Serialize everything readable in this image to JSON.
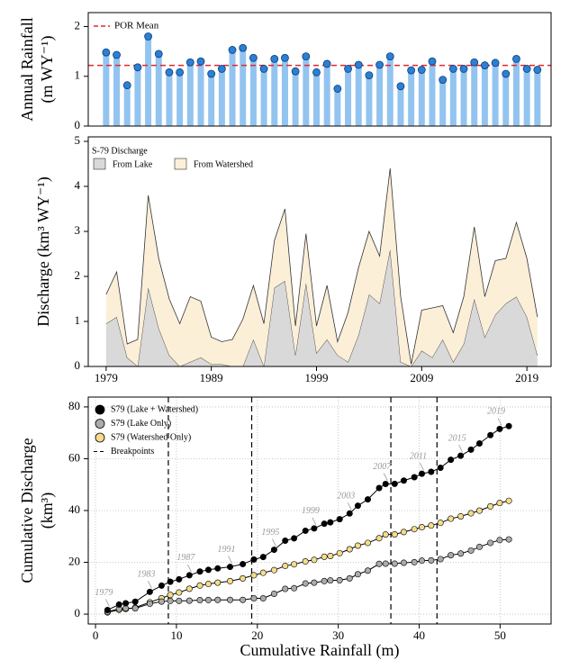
{
  "chart_data": [
    {
      "type": "bar",
      "ylabel": [
        "Annual Rainfall",
        "(m WY⁻¹)"
      ],
      "x": [
        1979,
        1980,
        1981,
        1982,
        1983,
        1984,
        1985,
        1986,
        1987,
        1988,
        1989,
        1990,
        1991,
        1992,
        1993,
        1994,
        1995,
        1996,
        1997,
        1998,
        1999,
        2000,
        2001,
        2002,
        2003,
        2004,
        2005,
        2006,
        2007,
        2008,
        2009,
        2010,
        2011,
        2012,
        2013,
        2014,
        2015,
        2016,
        2017,
        2018,
        2019,
        2020
      ],
      "values": [
        1.48,
        1.43,
        0.82,
        1.18,
        1.8,
        1.45,
        1.08,
        1.08,
        1.28,
        1.3,
        1.05,
        1.15,
        1.53,
        1.57,
        1.37,
        1.15,
        1.35,
        1.37,
        1.1,
        1.4,
        1.08,
        1.25,
        0.75,
        1.15,
        1.23,
        1.02,
        1.23,
        1.4,
        0.8,
        1.12,
        1.13,
        1.3,
        0.93,
        1.15,
        1.15,
        1.28,
        1.22,
        1.27,
        1.05,
        1.35,
        1.15,
        1.13
      ],
      "color": "#93c4f0",
      "marker_color": "#2b7fd6",
      "mean": {
        "name": "POR Mean",
        "value": 1.22,
        "color": "#e3262b"
      },
      "xlim": [
        1977.3,
        2021.3
      ],
      "ylim": [
        0,
        2.28
      ],
      "yticks": [
        0,
        1,
        2
      ]
    },
    {
      "type": "area",
      "ylabel": "Discharge (km³ WY⁻¹)",
      "legend_title": "S-79 Discharge",
      "x": [
        1979,
        1980,
        1981,
        1982,
        1983,
        1984,
        1985,
        1986,
        1987,
        1988,
        1989,
        1990,
        1991,
        1992,
        1993,
        1994,
        1995,
        1996,
        1997,
        1998,
        1999,
        2000,
        2001,
        2002,
        2003,
        2004,
        2005,
        2006,
        2007,
        2008,
        2009,
        2010,
        2011,
        2012,
        2013,
        2014,
        2015,
        2016,
        2017,
        2018,
        2019,
        2020
      ],
      "series": [
        {
          "name": "From Lake",
          "color": "#d9d9d9",
          "values": [
            0.95,
            1.1,
            0.2,
            0,
            1.75,
            0.85,
            0.25,
            0,
            0.1,
            0.2,
            0.05,
            0.05,
            0,
            0,
            0.6,
            0,
            1.75,
            1.9,
            0.25,
            1.85,
            0.3,
            0.6,
            0.25,
            0.1,
            0.7,
            1.6,
            1.4,
            2.6,
            0.1,
            0,
            0.35,
            0.2,
            0.6,
            0.1,
            0.5,
            1.5,
            0.65,
            1.15,
            1.4,
            1.55,
            1.1,
            0.25
          ]
        },
        {
          "name": "From Watershed",
          "color": "#fcefd8",
          "values": [
            0.65,
            1.0,
            0.3,
            0.6,
            2.05,
            1.55,
            1.25,
            0.95,
            1.45,
            1.25,
            0.6,
            0.5,
            0.6,
            1.05,
            1.2,
            0.95,
            1.05,
            1.6,
            0.65,
            1.1,
            0.6,
            1.2,
            0.3,
            1.1,
            1.5,
            1.4,
            1.05,
            1.8,
            1.45,
            0.05,
            0.9,
            1.1,
            0.75,
            0.65,
            1.05,
            1.6,
            0.9,
            1.2,
            1.0,
            1.65,
            1.3,
            0.85
          ]
        }
      ],
      "stacked": true,
      "xlim": [
        1977.3,
        2021.3
      ],
      "xticks": [
        1979,
        1989,
        1999,
        2009,
        2019
      ],
      "ylim": [
        0,
        5.1
      ],
      "yticks": [
        0,
        1,
        2,
        3,
        4,
        5
      ]
    },
    {
      "type": "line",
      "xlabel": "Cumulative Rainfall (m)",
      "ylabel": [
        "Cumulative Discharge",
        "(km³)"
      ],
      "x": [
        1.48,
        2.91,
        3.73,
        4.91,
        6.71,
        8.16,
        9.24,
        10.32,
        11.6,
        12.9,
        13.95,
        15.1,
        16.63,
        18.2,
        19.57,
        20.72,
        22.07,
        23.44,
        24.54,
        25.94,
        27.02,
        28.27,
        29.02,
        30.17,
        31.4,
        32.42,
        33.65,
        35.05,
        35.85,
        36.97,
        38.1,
        39.4,
        40.33,
        41.48,
        42.63,
        43.91,
        45.13,
        46.4,
        47.45,
        48.8,
        49.95,
        51.08
      ],
      "series": [
        {
          "name": "S79 (Lake + Watershed)",
          "color": "#000000",
          "values": [
            1.6,
            3.7,
            4.2,
            4.8,
            8.6,
            11.0,
            12.5,
            13.45,
            15.0,
            16.45,
            17.1,
            17.65,
            18.25,
            19.3,
            21.1,
            22.05,
            24.85,
            28.35,
            29.25,
            32.2,
            33.1,
            34.9,
            35.45,
            36.65,
            38.85,
            41.85,
            44.3,
            48.7,
            50.25,
            50.3,
            51.55,
            52.85,
            54.2,
            54.95,
            56.5,
            59.6,
            61.15,
            63.5,
            65.9,
            69.1,
            71.5,
            72.6
          ]
        },
        {
          "name": "S79 (Lake Only)",
          "color": "#ababab",
          "values": [
            0.95,
            2.05,
            2.25,
            2.25,
            4.0,
            4.85,
            5.1,
            5.1,
            5.2,
            5.4,
            5.45,
            5.5,
            5.5,
            5.5,
            6.1,
            6.1,
            7.85,
            9.75,
            10.0,
            11.85,
            12.15,
            12.75,
            13.0,
            13.1,
            13.8,
            15.4,
            16.8,
            19.4,
            19.5,
            19.5,
            19.85,
            20.05,
            20.65,
            20.75,
            21.25,
            22.75,
            23.4,
            24.55,
            25.95,
            27.5,
            28.6,
            28.85
          ]
        },
        {
          "name": "S79 (Watershed Only)",
          "color": "#f4dc8a",
          "values": [
            0.65,
            1.65,
            1.95,
            2.55,
            4.6,
            6.15,
            7.4,
            8.35,
            9.8,
            11.05,
            11.65,
            12.15,
            12.75,
            13.8,
            15.0,
            15.95,
            17.0,
            18.6,
            19.25,
            20.35,
            20.95,
            22.15,
            22.45,
            23.55,
            25.05,
            26.45,
            27.5,
            29.3,
            30.75,
            30.8,
            31.7,
            32.8,
            33.55,
            34.2,
            35.25,
            36.85,
            37.75,
            38.95,
            39.95,
            41.6,
            42.9,
            43.75
          ]
        }
      ],
      "breakpoints": {
        "name": "Breakpoints",
        "values": [
          9.0,
          19.3,
          36.5,
          42.2
        ]
      },
      "annotations": [
        "1979",
        "1983",
        "1987",
        "1991",
        "1995",
        "1999",
        "2003",
        "2007",
        "2011",
        "2015",
        "2019"
      ],
      "grid": true,
      "xlim": [
        -0.9,
        56.3
      ],
      "xticks": [
        0,
        10,
        20,
        30,
        40,
        50
      ],
      "ylim": [
        -3.8,
        83.8
      ],
      "yticks": [
        0,
        20,
        40,
        60,
        80
      ]
    }
  ]
}
